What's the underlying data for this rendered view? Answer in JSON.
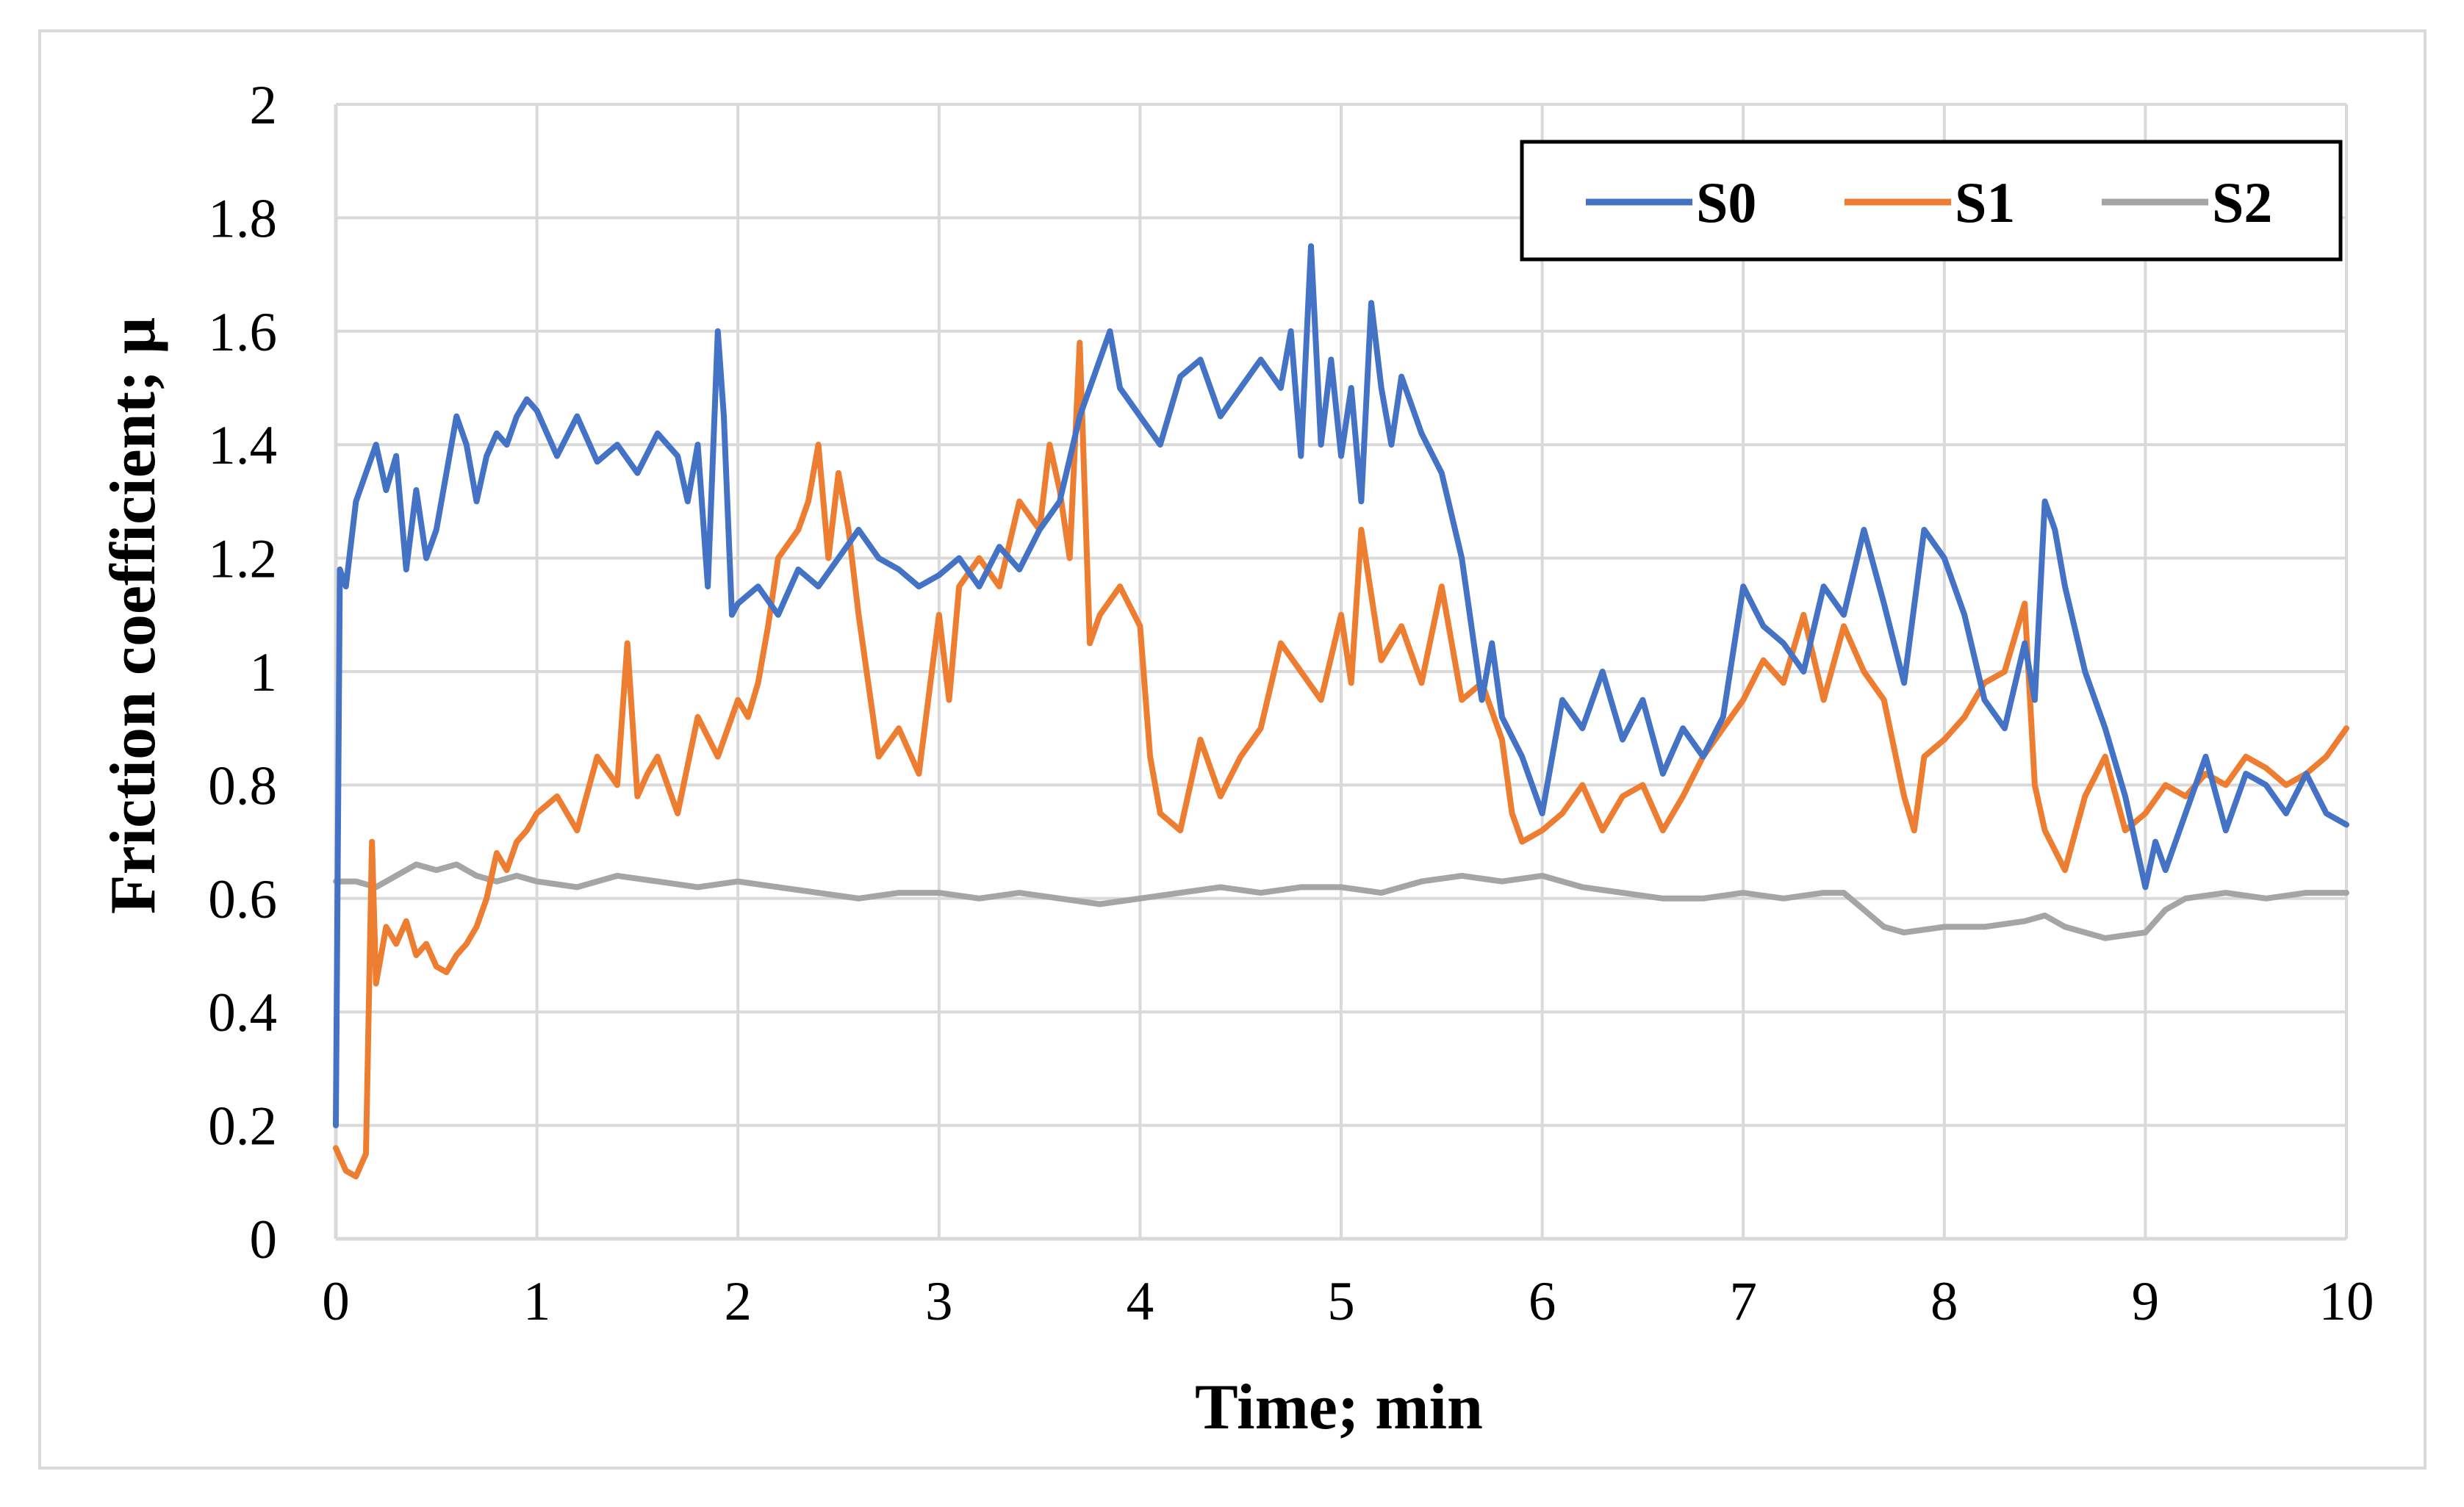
{
  "chart_data": {
    "type": "line",
    "title": "",
    "xlabel": "Time; min",
    "ylabel": "Friction coefficient; μ",
    "xlim": [
      0,
      10
    ],
    "ylim": [
      0,
      2
    ],
    "grid": true,
    "legend": "top-right",
    "x_ticks": [
      "0",
      "1",
      "2",
      "3",
      "4",
      "5",
      "6",
      "7",
      "8",
      "9",
      "10"
    ],
    "y_ticks": [
      "0",
      "0.2",
      "0.4",
      "0.6",
      "0.8",
      "1",
      "1.2",
      "1.4",
      "1.6",
      "1.8",
      "2"
    ],
    "series": [
      {
        "name": "S0",
        "color": "#4472c4",
        "x": [
          0,
          0.02,
          0.05,
          0.1,
          0.15,
          0.2,
          0.25,
          0.3,
          0.35,
          0.4,
          0.45,
          0.5,
          0.55,
          0.6,
          0.65,
          0.7,
          0.75,
          0.8,
          0.85,
          0.9,
          0.95,
          1.0,
          1.1,
          1.2,
          1.3,
          1.4,
          1.5,
          1.6,
          1.7,
          1.75,
          1.8,
          1.85,
          1.9,
          1.93,
          1.97,
          2.0,
          2.1,
          2.2,
          2.3,
          2.4,
          2.5,
          2.6,
          2.7,
          2.8,
          2.9,
          3.0,
          3.1,
          3.2,
          3.3,
          3.4,
          3.5,
          3.6,
          3.7,
          3.75,
          3.8,
          3.85,
          3.9,
          4.0,
          4.1,
          4.2,
          4.3,
          4.4,
          4.5,
          4.6,
          4.7,
          4.75,
          4.8,
          4.85,
          4.9,
          4.95,
          5.0,
          5.05,
          5.1,
          5.15,
          5.2,
          5.25,
          5.3,
          5.4,
          5.5,
          5.6,
          5.7,
          5.75,
          5.8,
          5.9,
          6.0,
          6.1,
          6.2,
          6.3,
          6.4,
          6.5,
          6.6,
          6.7,
          6.8,
          6.9,
          7.0,
          7.1,
          7.2,
          7.3,
          7.4,
          7.5,
          7.6,
          7.7,
          7.8,
          7.9,
          8.0,
          8.1,
          8.2,
          8.3,
          8.4,
          8.45,
          8.5,
          8.55,
          8.6,
          8.7,
          8.8,
          8.9,
          9.0,
          9.05,
          9.1,
          9.2,
          9.3,
          9.4,
          9.5,
          9.6,
          9.7,
          9.8,
          9.9,
          10.0
        ],
        "values": [
          0.2,
          1.18,
          1.15,
          1.3,
          1.35,
          1.4,
          1.32,
          1.38,
          1.18,
          1.32,
          1.2,
          1.25,
          1.35,
          1.45,
          1.4,
          1.3,
          1.38,
          1.42,
          1.4,
          1.45,
          1.48,
          1.46,
          1.38,
          1.45,
          1.37,
          1.4,
          1.35,
          1.42,
          1.38,
          1.3,
          1.4,
          1.15,
          1.6,
          1.45,
          1.1,
          1.12,
          1.15,
          1.1,
          1.18,
          1.15,
          1.2,
          1.25,
          1.2,
          1.18,
          1.15,
          1.17,
          1.2,
          1.15,
          1.22,
          1.18,
          1.25,
          1.3,
          1.45,
          1.5,
          1.55,
          1.6,
          1.5,
          1.45,
          1.4,
          1.52,
          1.55,
          1.45,
          1.5,
          1.55,
          1.5,
          1.6,
          1.38,
          1.75,
          1.4,
          1.55,
          1.38,
          1.5,
          1.3,
          1.65,
          1.5,
          1.4,
          1.52,
          1.42,
          1.35,
          1.2,
          0.95,
          1.05,
          0.92,
          0.85,
          0.75,
          0.95,
          0.9,
          1.0,
          0.88,
          0.95,
          0.82,
          0.9,
          0.85,
          0.92,
          1.15,
          1.08,
          1.05,
          1.0,
          1.15,
          1.1,
          1.25,
          1.12,
          0.98,
          1.25,
          1.2,
          1.1,
          0.95,
          0.9,
          1.05,
          0.95,
          1.3,
          1.25,
          1.15,
          1.0,
          0.9,
          0.78,
          0.62,
          0.7,
          0.65,
          0.75,
          0.85,
          0.72,
          0.82,
          0.8,
          0.75,
          0.82,
          0.75,
          0.73
        ]
      },
      {
        "name": "S1",
        "color": "#ed7d31",
        "x": [
          0,
          0.05,
          0.1,
          0.15,
          0.18,
          0.2,
          0.25,
          0.3,
          0.35,
          0.4,
          0.45,
          0.5,
          0.55,
          0.6,
          0.65,
          0.7,
          0.75,
          0.8,
          0.85,
          0.9,
          0.95,
          1.0,
          1.1,
          1.2,
          1.3,
          1.4,
          1.45,
          1.5,
          1.55,
          1.6,
          1.7,
          1.8,
          1.9,
          2.0,
          2.05,
          2.1,
          2.15,
          2.2,
          2.3,
          2.35,
          2.4,
          2.45,
          2.5,
          2.55,
          2.6,
          2.7,
          2.8,
          2.9,
          3.0,
          3.05,
          3.1,
          3.2,
          3.3,
          3.4,
          3.5,
          3.55,
          3.6,
          3.65,
          3.7,
          3.75,
          3.8,
          3.9,
          4.0,
          4.05,
          4.1,
          4.2,
          4.3,
          4.4,
          4.5,
          4.6,
          4.7,
          4.8,
          4.9,
          5.0,
          5.05,
          5.1,
          5.2,
          5.3,
          5.4,
          5.5,
          5.6,
          5.7,
          5.8,
          5.85,
          5.9,
          6.0,
          6.1,
          6.2,
          6.3,
          6.4,
          6.5,
          6.6,
          6.7,
          6.8,
          6.9,
          7.0,
          7.1,
          7.2,
          7.3,
          7.4,
          7.5,
          7.6,
          7.7,
          7.8,
          7.85,
          7.9,
          8.0,
          8.1,
          8.2,
          8.3,
          8.4,
          8.45,
          8.5,
          8.6,
          8.7,
          8.8,
          8.9,
          9.0,
          9.1,
          9.2,
          9.3,
          9.4,
          9.5,
          9.6,
          9.7,
          9.8,
          9.9,
          10.0
        ],
        "values": [
          0.16,
          0.12,
          0.11,
          0.15,
          0.7,
          0.45,
          0.55,
          0.52,
          0.56,
          0.5,
          0.52,
          0.48,
          0.47,
          0.5,
          0.52,
          0.55,
          0.6,
          0.68,
          0.65,
          0.7,
          0.72,
          0.75,
          0.78,
          0.72,
          0.85,
          0.8,
          1.05,
          0.78,
          0.82,
          0.85,
          0.75,
          0.92,
          0.85,
          0.95,
          0.92,
          0.98,
          1.08,
          1.2,
          1.25,
          1.3,
          1.4,
          1.2,
          1.35,
          1.25,
          1.1,
          0.85,
          0.9,
          0.82,
          1.1,
          0.95,
          1.15,
          1.2,
          1.15,
          1.3,
          1.25,
          1.4,
          1.32,
          1.2,
          1.58,
          1.05,
          1.1,
          1.15,
          1.08,
          0.85,
          0.75,
          0.72,
          0.88,
          0.78,
          0.85,
          0.9,
          1.05,
          1.0,
          0.95,
          1.1,
          0.98,
          1.25,
          1.02,
          1.08,
          0.98,
          1.15,
          0.95,
          0.98,
          0.88,
          0.75,
          0.7,
          0.72,
          0.75,
          0.8,
          0.72,
          0.78,
          0.8,
          0.72,
          0.78,
          0.85,
          0.9,
          0.95,
          1.02,
          0.98,
          1.1,
          0.95,
          1.08,
          1.0,
          0.95,
          0.78,
          0.72,
          0.85,
          0.88,
          0.92,
          0.98,
          1.0,
          1.12,
          0.8,
          0.72,
          0.65,
          0.78,
          0.85,
          0.72,
          0.75,
          0.8,
          0.78,
          0.82,
          0.8,
          0.85,
          0.83,
          0.8,
          0.82,
          0.85,
          0.9
        ]
      },
      {
        "name": "S2",
        "color": "#a5a5a5",
        "x": [
          0,
          0.1,
          0.2,
          0.3,
          0.4,
          0.5,
          0.6,
          0.7,
          0.8,
          0.9,
          1.0,
          1.2,
          1.4,
          1.6,
          1.8,
          2.0,
          2.2,
          2.4,
          2.6,
          2.8,
          3.0,
          3.2,
          3.4,
          3.6,
          3.8,
          4.0,
          4.2,
          4.4,
          4.6,
          4.8,
          5.0,
          5.2,
          5.4,
          5.6,
          5.8,
          6.0,
          6.2,
          6.4,
          6.6,
          6.8,
          7.0,
          7.2,
          7.4,
          7.5,
          7.6,
          7.7,
          7.8,
          8.0,
          8.2,
          8.4,
          8.5,
          8.6,
          8.8,
          9.0,
          9.1,
          9.2,
          9.4,
          9.6,
          9.8,
          10.0
        ],
        "values": [
          0.63,
          0.63,
          0.62,
          0.64,
          0.66,
          0.65,
          0.66,
          0.64,
          0.63,
          0.64,
          0.63,
          0.62,
          0.64,
          0.63,
          0.62,
          0.63,
          0.62,
          0.61,
          0.6,
          0.61,
          0.61,
          0.6,
          0.61,
          0.6,
          0.59,
          0.6,
          0.61,
          0.62,
          0.61,
          0.62,
          0.62,
          0.61,
          0.63,
          0.64,
          0.63,
          0.64,
          0.62,
          0.61,
          0.6,
          0.6,
          0.61,
          0.6,
          0.61,
          0.61,
          0.58,
          0.55,
          0.54,
          0.55,
          0.55,
          0.56,
          0.57,
          0.55,
          0.53,
          0.54,
          0.58,
          0.6,
          0.61,
          0.6,
          0.61,
          0.61
        ]
      }
    ]
  }
}
